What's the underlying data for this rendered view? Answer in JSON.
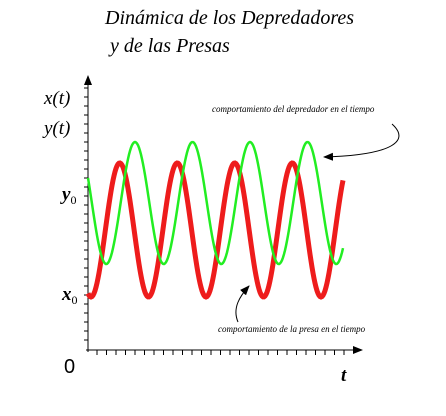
{
  "title": {
    "line1": "Dinámica de los Depredadores",
    "line2": "y de las Presas"
  },
  "axis_labels": {
    "x_t": "x(t)",
    "y_t": "y(t)",
    "origin": "0",
    "time": "t",
    "y0": {
      "base": "y",
      "sub": "0"
    },
    "x0": {
      "base": "x",
      "sub": "0"
    }
  },
  "annotations": {
    "predator": "comportamiento del depredador en el tiempo",
    "prey": "comportamiento de la presa en el tiempo"
  }
}
